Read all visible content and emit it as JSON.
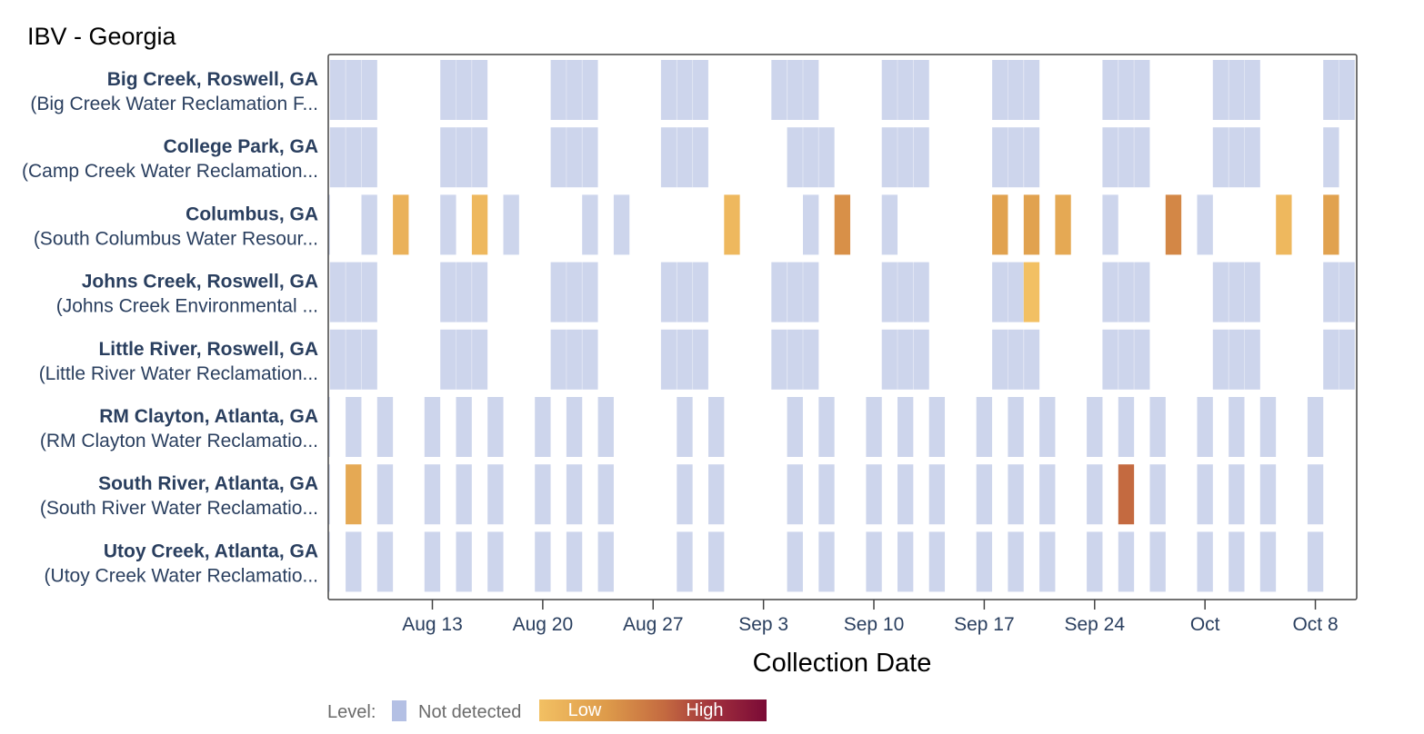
{
  "chart_data": {
    "type": "heatmap",
    "title": "IBV - Georgia",
    "xlabel": "Collection Date",
    "x_tick_labels": [
      "Aug 13",
      "Aug 20",
      "Aug 27",
      "Sep 3",
      "Sep 10",
      "Sep 17",
      "Sep 24",
      "Oct",
      "Oct 8"
    ],
    "x_tick_dates": [
      "2024-08-13",
      "2024-08-20",
      "2024-08-27",
      "2024-09-03",
      "2024-09-10",
      "2024-09-17",
      "2024-09-24",
      "2024-10-01",
      "2024-10-08"
    ],
    "xlim": [
      "2024-08-06",
      "2024-10-10"
    ],
    "legend": {
      "label": "Level:",
      "not_detected": "Not detected",
      "low": "Low",
      "high": "High",
      "colors": {
        "not_detected": "#cdd5ec",
        "swatch": "#b4c0e4",
        "gradient": [
          "#f2c063",
          "#dd9a4a",
          "#c46a40",
          "#9b2a3c",
          "#7a0a36"
        ]
      }
    },
    "sites": [
      {
        "name": "Big Creek, Roswell, GA",
        "plant": "(Big Creek Water Reclamation F...",
        "samples": [
          {
            "start": "2024-08-07",
            "end": "2024-08-09",
            "level": "none"
          },
          {
            "start": "2024-08-14",
            "end": "2024-08-16",
            "level": "none"
          },
          {
            "start": "2024-08-21",
            "end": "2024-08-23",
            "level": "none"
          },
          {
            "start": "2024-08-28",
            "end": "2024-08-30",
            "level": "none"
          },
          {
            "start": "2024-09-04",
            "end": "2024-09-06",
            "level": "none"
          },
          {
            "start": "2024-09-11",
            "end": "2024-09-13",
            "level": "none"
          },
          {
            "start": "2024-09-18",
            "end": "2024-09-20",
            "level": "none"
          },
          {
            "start": "2024-09-25",
            "end": "2024-09-27",
            "level": "none"
          },
          {
            "start": "2024-10-02",
            "end": "2024-10-04",
            "level": "none"
          },
          {
            "start": "2024-10-09",
            "end": "2024-10-10",
            "level": "none"
          }
        ]
      },
      {
        "name": "College Park, GA",
        "plant": "(Camp Creek Water Reclamation...",
        "samples": [
          {
            "start": "2024-08-07",
            "end": "2024-08-09",
            "level": "none"
          },
          {
            "start": "2024-08-14",
            "end": "2024-08-16",
            "level": "none"
          },
          {
            "start": "2024-08-21",
            "end": "2024-08-23",
            "level": "none"
          },
          {
            "start": "2024-08-28",
            "end": "2024-08-30",
            "level": "none"
          },
          {
            "start": "2024-09-05",
            "end": "2024-09-07",
            "level": "none"
          },
          {
            "start": "2024-09-11",
            "end": "2024-09-13",
            "level": "none"
          },
          {
            "start": "2024-09-18",
            "end": "2024-09-20",
            "level": "none"
          },
          {
            "start": "2024-09-25",
            "end": "2024-09-27",
            "level": "none"
          },
          {
            "start": "2024-10-02",
            "end": "2024-10-04",
            "level": "none"
          },
          {
            "start": "2024-10-09",
            "end": "2024-10-09",
            "level": "none"
          }
        ]
      },
      {
        "name": "Columbus, GA",
        "plant": "(South Columbus Water Resour...",
        "samples": [
          {
            "start": "2024-08-06",
            "end": "2024-08-06",
            "level": "none"
          },
          {
            "start": "2024-08-09",
            "end": "2024-08-09",
            "level": "none"
          },
          {
            "start": "2024-08-11",
            "end": "2024-08-11",
            "level": 0.1
          },
          {
            "start": "2024-08-14",
            "end": "2024-08-14",
            "level": "none"
          },
          {
            "start": "2024-08-16",
            "end": "2024-08-16",
            "level": 0.05
          },
          {
            "start": "2024-08-18",
            "end": "2024-08-18",
            "level": "none"
          },
          {
            "start": "2024-08-23",
            "end": "2024-08-23",
            "level": "none"
          },
          {
            "start": "2024-08-25",
            "end": "2024-08-25",
            "level": "none"
          },
          {
            "start": "2024-09-01",
            "end": "2024-09-01",
            "level": 0.05
          },
          {
            "start": "2024-09-06",
            "end": "2024-09-06",
            "level": "none"
          },
          {
            "start": "2024-09-08",
            "end": "2024-09-08",
            "level": 0.3
          },
          {
            "start": "2024-09-11",
            "end": "2024-09-11",
            "level": "none"
          },
          {
            "start": "2024-09-18",
            "end": "2024-09-18",
            "level": 0.2
          },
          {
            "start": "2024-09-20",
            "end": "2024-09-20",
            "level": 0.2
          },
          {
            "start": "2024-09-22",
            "end": "2024-09-22",
            "level": 0.15
          },
          {
            "start": "2024-09-25",
            "end": "2024-09-25",
            "level": "none"
          },
          {
            "start": "2024-09-29",
            "end": "2024-09-29",
            "level": 0.35
          },
          {
            "start": "2024-10-01",
            "end": "2024-10-01",
            "level": "none"
          },
          {
            "start": "2024-10-06",
            "end": "2024-10-06",
            "level": 0.05
          },
          {
            "start": "2024-10-09",
            "end": "2024-10-09",
            "level": 0.2
          }
        ]
      },
      {
        "name": "Johns Creek, Roswell, GA",
        "plant": "(Johns Creek Environmental ...",
        "samples": [
          {
            "start": "2024-08-07",
            "end": "2024-08-09",
            "level": "none"
          },
          {
            "start": "2024-08-14",
            "end": "2024-08-16",
            "level": "none"
          },
          {
            "start": "2024-08-21",
            "end": "2024-08-23",
            "level": "none"
          },
          {
            "start": "2024-08-28",
            "end": "2024-08-30",
            "level": "none"
          },
          {
            "start": "2024-09-04",
            "end": "2024-09-06",
            "level": "none"
          },
          {
            "start": "2024-09-11",
            "end": "2024-09-13",
            "level": "none"
          },
          {
            "start": "2024-09-18",
            "end": "2024-09-19",
            "level": "none"
          },
          {
            "start": "2024-09-20",
            "end": "2024-09-20",
            "level": 0.0
          },
          {
            "start": "2024-09-25",
            "end": "2024-09-27",
            "level": "none"
          },
          {
            "start": "2024-10-02",
            "end": "2024-10-04",
            "level": "none"
          },
          {
            "start": "2024-10-09",
            "end": "2024-10-10",
            "level": "none"
          }
        ]
      },
      {
        "name": "Little River, Roswell, GA",
        "plant": "(Little River Water Reclamation...",
        "samples": [
          {
            "start": "2024-08-07",
            "end": "2024-08-09",
            "level": "none"
          },
          {
            "start": "2024-08-14",
            "end": "2024-08-16",
            "level": "none"
          },
          {
            "start": "2024-08-21",
            "end": "2024-08-23",
            "level": "none"
          },
          {
            "start": "2024-08-28",
            "end": "2024-08-30",
            "level": "none"
          },
          {
            "start": "2024-09-04",
            "end": "2024-09-06",
            "level": "none"
          },
          {
            "start": "2024-09-11",
            "end": "2024-09-13",
            "level": "none"
          },
          {
            "start": "2024-09-18",
            "end": "2024-09-20",
            "level": "none"
          },
          {
            "start": "2024-09-25",
            "end": "2024-09-27",
            "level": "none"
          },
          {
            "start": "2024-10-02",
            "end": "2024-10-04",
            "level": "none"
          },
          {
            "start": "2024-10-09",
            "end": "2024-10-10",
            "level": "none"
          }
        ]
      },
      {
        "name": "RM Clayton, Atlanta, GA",
        "plant": "(RM Clayton Water Reclamatio...",
        "samples": [
          {
            "start": "2024-08-06",
            "end": "2024-08-06",
            "level": "none"
          },
          {
            "start": "2024-08-08",
            "end": "2024-08-08",
            "level": "none"
          },
          {
            "start": "2024-08-10",
            "end": "2024-08-10",
            "level": "none"
          },
          {
            "start": "2024-08-13",
            "end": "2024-08-13",
            "level": "none"
          },
          {
            "start": "2024-08-15",
            "end": "2024-08-15",
            "level": "none"
          },
          {
            "start": "2024-08-17",
            "end": "2024-08-17",
            "level": "none"
          },
          {
            "start": "2024-08-20",
            "end": "2024-08-20",
            "level": "none"
          },
          {
            "start": "2024-08-22",
            "end": "2024-08-22",
            "level": "none"
          },
          {
            "start": "2024-08-24",
            "end": "2024-08-24",
            "level": "none"
          },
          {
            "start": "2024-08-29",
            "end": "2024-08-29",
            "level": "none"
          },
          {
            "start": "2024-08-31",
            "end": "2024-08-31",
            "level": "none"
          },
          {
            "start": "2024-09-05",
            "end": "2024-09-05",
            "level": "none"
          },
          {
            "start": "2024-09-07",
            "end": "2024-09-07",
            "level": "none"
          },
          {
            "start": "2024-09-10",
            "end": "2024-09-10",
            "level": "none"
          },
          {
            "start": "2024-09-12",
            "end": "2024-09-12",
            "level": "none"
          },
          {
            "start": "2024-09-14",
            "end": "2024-09-14",
            "level": "none"
          },
          {
            "start": "2024-09-17",
            "end": "2024-09-17",
            "level": "none"
          },
          {
            "start": "2024-09-19",
            "end": "2024-09-19",
            "level": "none"
          },
          {
            "start": "2024-09-21",
            "end": "2024-09-21",
            "level": "none"
          },
          {
            "start": "2024-09-24",
            "end": "2024-09-24",
            "level": "none"
          },
          {
            "start": "2024-09-26",
            "end": "2024-09-26",
            "level": "none"
          },
          {
            "start": "2024-09-28",
            "end": "2024-09-28",
            "level": "none"
          },
          {
            "start": "2024-10-01",
            "end": "2024-10-01",
            "level": "none"
          },
          {
            "start": "2024-10-03",
            "end": "2024-10-03",
            "level": "none"
          },
          {
            "start": "2024-10-05",
            "end": "2024-10-05",
            "level": "none"
          },
          {
            "start": "2024-10-08",
            "end": "2024-10-08",
            "level": "none"
          }
        ]
      },
      {
        "name": "South River, Atlanta, GA",
        "plant": "(South River Water Reclamatio...",
        "samples": [
          {
            "start": "2024-08-06",
            "end": "2024-08-06",
            "level": "none"
          },
          {
            "start": "2024-08-08",
            "end": "2024-08-08",
            "level": 0.15
          },
          {
            "start": "2024-08-10",
            "end": "2024-08-10",
            "level": "none"
          },
          {
            "start": "2024-08-13",
            "end": "2024-08-13",
            "level": "none"
          },
          {
            "start": "2024-08-15",
            "end": "2024-08-15",
            "level": "none"
          },
          {
            "start": "2024-08-17",
            "end": "2024-08-17",
            "level": "none"
          },
          {
            "start": "2024-08-20",
            "end": "2024-08-20",
            "level": "none"
          },
          {
            "start": "2024-08-22",
            "end": "2024-08-22",
            "level": "none"
          },
          {
            "start": "2024-08-24",
            "end": "2024-08-24",
            "level": "none"
          },
          {
            "start": "2024-08-29",
            "end": "2024-08-29",
            "level": "none"
          },
          {
            "start": "2024-08-31",
            "end": "2024-08-31",
            "level": "none"
          },
          {
            "start": "2024-09-05",
            "end": "2024-09-05",
            "level": "none"
          },
          {
            "start": "2024-09-07",
            "end": "2024-09-07",
            "level": "none"
          },
          {
            "start": "2024-09-10",
            "end": "2024-09-10",
            "level": "none"
          },
          {
            "start": "2024-09-12",
            "end": "2024-09-12",
            "level": "none"
          },
          {
            "start": "2024-09-14",
            "end": "2024-09-14",
            "level": "none"
          },
          {
            "start": "2024-09-17",
            "end": "2024-09-17",
            "level": "none"
          },
          {
            "start": "2024-09-19",
            "end": "2024-09-19",
            "level": "none"
          },
          {
            "start": "2024-09-21",
            "end": "2024-09-21",
            "level": "none"
          },
          {
            "start": "2024-09-24",
            "end": "2024-09-24",
            "level": "none"
          },
          {
            "start": "2024-09-26",
            "end": "2024-09-26",
            "level": 0.5
          },
          {
            "start": "2024-09-28",
            "end": "2024-09-28",
            "level": "none"
          },
          {
            "start": "2024-10-01",
            "end": "2024-10-01",
            "level": "none"
          },
          {
            "start": "2024-10-03",
            "end": "2024-10-03",
            "level": "none"
          },
          {
            "start": "2024-10-05",
            "end": "2024-10-05",
            "level": "none"
          },
          {
            "start": "2024-10-08",
            "end": "2024-10-08",
            "level": "none"
          }
        ]
      },
      {
        "name": "Utoy Creek, Atlanta, GA",
        "plant": "(Utoy Creek Water Reclamatio...",
        "samples": [
          {
            "start": "2024-08-06",
            "end": "2024-08-06",
            "level": "none"
          },
          {
            "start": "2024-08-08",
            "end": "2024-08-08",
            "level": "none"
          },
          {
            "start": "2024-08-10",
            "end": "2024-08-10",
            "level": "none"
          },
          {
            "start": "2024-08-13",
            "end": "2024-08-13",
            "level": "none"
          },
          {
            "start": "2024-08-15",
            "end": "2024-08-15",
            "level": "none"
          },
          {
            "start": "2024-08-17",
            "end": "2024-08-17",
            "level": "none"
          },
          {
            "start": "2024-08-20",
            "end": "2024-08-20",
            "level": "none"
          },
          {
            "start": "2024-08-22",
            "end": "2024-08-22",
            "level": "none"
          },
          {
            "start": "2024-08-24",
            "end": "2024-08-24",
            "level": "none"
          },
          {
            "start": "2024-08-29",
            "end": "2024-08-29",
            "level": "none"
          },
          {
            "start": "2024-08-31",
            "end": "2024-08-31",
            "level": "none"
          },
          {
            "start": "2024-09-05",
            "end": "2024-09-05",
            "level": "none"
          },
          {
            "start": "2024-09-07",
            "end": "2024-09-07",
            "level": "none"
          },
          {
            "start": "2024-09-10",
            "end": "2024-09-10",
            "level": "none"
          },
          {
            "start": "2024-09-12",
            "end": "2024-09-12",
            "level": "none"
          },
          {
            "start": "2024-09-14",
            "end": "2024-09-14",
            "level": "none"
          },
          {
            "start": "2024-09-17",
            "end": "2024-09-17",
            "level": "none"
          },
          {
            "start": "2024-09-19",
            "end": "2024-09-19",
            "level": "none"
          },
          {
            "start": "2024-09-21",
            "end": "2024-09-21",
            "level": "none"
          },
          {
            "start": "2024-09-24",
            "end": "2024-09-24",
            "level": "none"
          },
          {
            "start": "2024-09-26",
            "end": "2024-09-26",
            "level": "none"
          },
          {
            "start": "2024-09-28",
            "end": "2024-09-28",
            "level": "none"
          },
          {
            "start": "2024-10-01",
            "end": "2024-10-01",
            "level": "none"
          },
          {
            "start": "2024-10-03",
            "end": "2024-10-03",
            "level": "none"
          },
          {
            "start": "2024-10-05",
            "end": "2024-10-05",
            "level": "none"
          },
          {
            "start": "2024-10-08",
            "end": "2024-10-08",
            "level": "none"
          }
        ]
      }
    ]
  }
}
